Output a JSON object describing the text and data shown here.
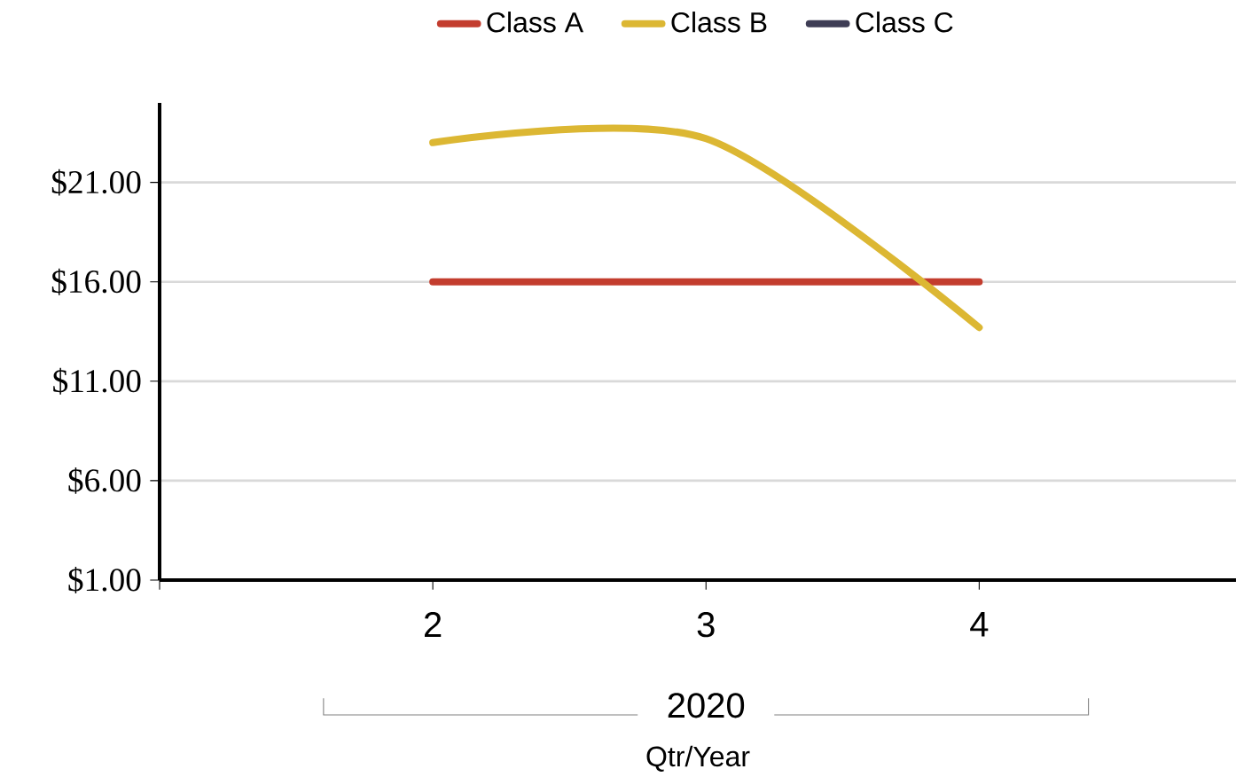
{
  "chart_data": {
    "type": "line",
    "categories": [
      "2",
      "3",
      "4"
    ],
    "series": [
      {
        "name": "Class A",
        "color": "#c33d2e",
        "values": [
          16,
          16,
          16
        ]
      },
      {
        "name": "Class B",
        "color": "#dcb733",
        "values": [
          23.0,
          23.2,
          13.7
        ]
      },
      {
        "name": "Class C",
        "color": "#3e3d55",
        "values": [
          null,
          null,
          null
        ]
      }
    ],
    "xlabel": "Qtr/Year",
    "annotations": [
      "2020"
    ],
    "ylim": [
      1,
      25
    ],
    "yticks": [
      {
        "value": 1,
        "label": "$1.00"
      },
      {
        "value": 6,
        "label": "$6.00"
      },
      {
        "value": 11,
        "label": "$11.00"
      },
      {
        "value": 16,
        "label": "$16.00"
      },
      {
        "value": 21,
        "label": "$21.00"
      }
    ],
    "grid": "y",
    "legend": "top",
    "line_style": "solid",
    "marker": "none"
  }
}
